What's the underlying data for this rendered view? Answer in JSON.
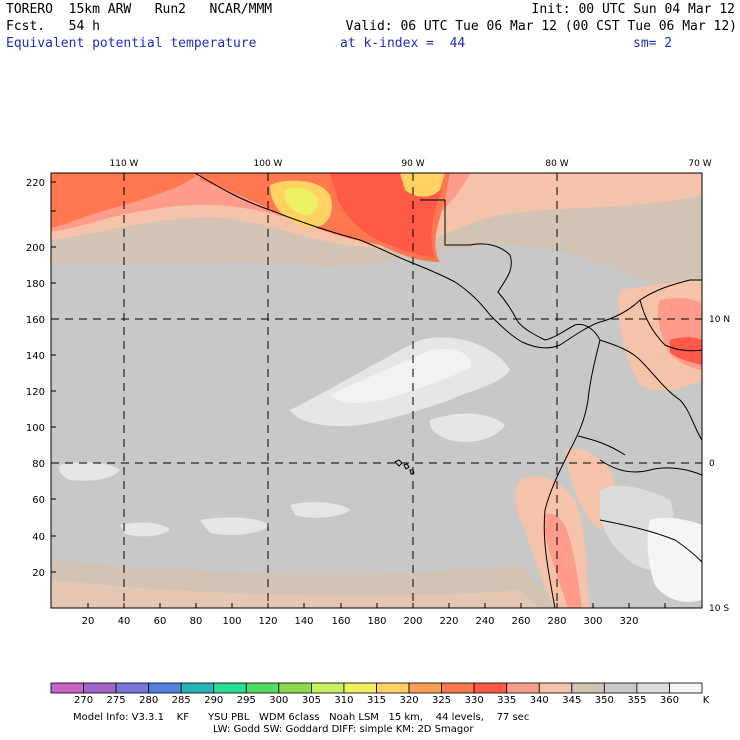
{
  "header": {
    "left_line1": "TORERO  15km ARW   Run2   NCAR/MMM",
    "left_line2": "Fcst.   54 h",
    "right_line1": "Init: 00 UTC Sun 04 Mar 12",
    "right_line2": "Valid: 06 UTC Tue 06 Mar 12 (00 CST Tue 06 Mar 12)",
    "field_name": "Equivalent potential temperature",
    "level": "at k-index =  44",
    "smoothing": "sm= 2"
  },
  "map": {
    "x_axis_ticks": [
      "20",
      "40",
      "60",
      "80",
      "100",
      "120",
      "140",
      "160",
      "180",
      "200",
      "220",
      "240",
      "260",
      "280",
      "300",
      "320"
    ],
    "y_axis_ticks": [
      "20",
      "40",
      "60",
      "80",
      "100",
      "120",
      "140",
      "160",
      "180",
      "200",
      "220"
    ],
    "lon_labels": [
      "110 W",
      "100 W",
      "90 W",
      "80 W",
      "70 W"
    ],
    "lat_labels": [
      "10 N",
      "0",
      "10 S"
    ]
  },
  "colorbar": {
    "levels": [
      "270",
      "275",
      "280",
      "285",
      "290",
      "295",
      "300",
      "305",
      "310",
      "315",
      "320",
      "325",
      "330",
      "335",
      "340",
      "345",
      "350",
      "355",
      "360"
    ],
    "unit": "K",
    "colors": [
      "#c864c8",
      "#a064c8",
      "#7878dc",
      "#5082dc",
      "#28b4b4",
      "#28dc96",
      "#50dc64",
      "#8cdc50",
      "#c8f064",
      "#f0f064",
      "#ffd264",
      "#ffa05a",
      "#ff7850",
      "#ff5a46",
      "#ff9c8c",
      "#f5c3aa",
      "#d2c3b4",
      "#c8c8c8",
      "#dcdcdc",
      "#f5f5f5"
    ]
  },
  "footer": {
    "line1": "Model Info: V3.3.1    KF      YSU PBL   WDM 6class   Noah LSM   15 km,    44 levels,    77 sec",
    "line2": "LW: Godd SW: Goddard DIFF: simple KM: 2D Smagor"
  }
}
